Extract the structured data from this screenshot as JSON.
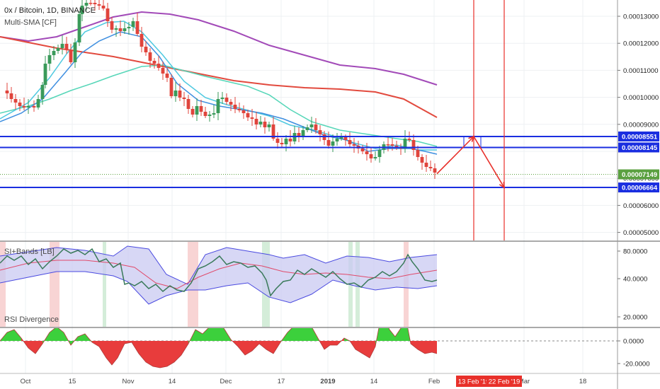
{
  "header": {
    "symbol": "0x / Bitcoin, 1D, BINANCE",
    "indicator_main": "Multi-SMA [CF]",
    "indicator_bands": "SI+Bands [LB]",
    "indicator_rsi": "RSI Divergence"
  },
  "colors": {
    "bull": "#3a9a5a",
    "bear": "#e0443c",
    "sma_fast": "#3f8fe0",
    "sma_cyan": "#4ec9e0",
    "sma_teal": "#56d6b8",
    "sma_red": "#e24a3e",
    "sma_purple": "#a24ab8",
    "level_line": "#1a2ee0",
    "marker_red": "#e8302a",
    "band_fill": "#c9c9f2",
    "band_edge": "#4a4ae0",
    "band_mid": "#e04a6a",
    "si_line": "#3a7a5a",
    "rsi_pos": "#3cd03c",
    "rsi_neg": "#e83c3c",
    "current_price_tag": "#5aa040"
  },
  "chart_data": [
    {
      "type": "candlestick",
      "title": "0x / Bitcoin, 1D, BINANCE",
      "y_ticks": [
        "0.00013000",
        "0.00012000",
        "0.00011000",
        "0.00010000",
        "0.00009000",
        "0.00007000",
        "0.00006000",
        "0.00005000"
      ],
      "ylim": [
        4.75e-05,
        0.0001345
      ],
      "x_ticks": [
        "Oct",
        "15",
        "Nov",
        "14",
        "Dec",
        "17",
        "2019",
        "14",
        "Feb",
        "Mar",
        "18"
      ],
      "overlays": [
        "SMA fast",
        "SMA",
        "SMA",
        "SMA",
        "SMA slow"
      ],
      "horizontal_levels": [
        {
          "value": 8.551e-05,
          "label": "0.00008551"
        },
        {
          "value": 8.145e-05,
          "label": "0.00008145"
        },
        {
          "value": 6.664e-05,
          "label": "0.00006664"
        }
      ],
      "current_price": {
        "value": 7.149e-05,
        "label": "0.00007149"
      },
      "vertical_dates": [
        "13 Feb '19",
        "22 Feb '19"
      ],
      "projection": {
        "points": [
          7.17e-05,
          8.55e-05,
          6.66e-05
        ]
      }
    },
    {
      "type": "line",
      "title": "SI+Bands [LB]",
      "y_ticks": [
        "80.0000",
        "40.0000"
      ]
    },
    {
      "type": "area",
      "title": "RSI Divergence",
      "y_ticks": [
        "20.0000",
        "0.0000",
        "-20.0000"
      ]
    }
  ]
}
